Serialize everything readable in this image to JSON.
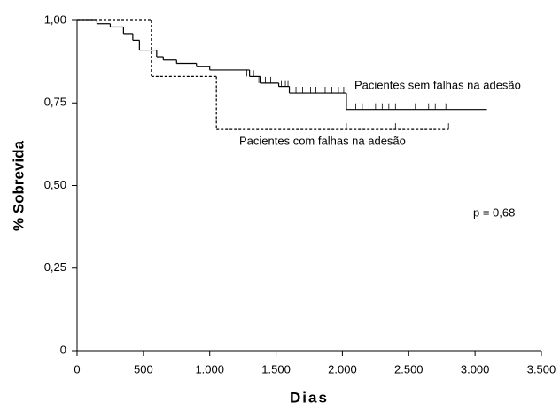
{
  "chart_data": {
    "type": "survival",
    "y_label": "% Sobrevida",
    "x_label": "Dias",
    "annotation": "p = 0,68",
    "xlim": [
      0,
      3500
    ],
    "ylim": [
      0,
      1
    ],
    "xticks": [
      0,
      500,
      {
        "value": 1000,
        "label": "1.000"
      },
      {
        "value": 1500,
        "label": "1.500"
      },
      {
        "value": 2000,
        "label": "2.000"
      },
      {
        "value": 2500,
        "label": "2.500"
      },
      {
        "value": 3000,
        "label": "3.000"
      },
      {
        "value": 3500,
        "label": "3.500"
      }
    ],
    "yticks": [
      0,
      {
        "value": 0.25,
        "label": "0,25"
      },
      {
        "value": 0.5,
        "label": "0,50"
      },
      {
        "value": 0.75,
        "label": "0,75"
      },
      {
        "value": 1,
        "label": "1,00"
      }
    ],
    "series": [
      {
        "name": "Pacientes sem falhas na adesão",
        "color": "#000000",
        "line_style": "solid",
        "x": [
          0,
          150,
          250,
          350,
          420,
          470,
          600,
          650,
          750,
          900,
          1000,
          1300,
          1380,
          1520,
          1600,
          2030,
          3090
        ],
        "values": [
          1,
          0.99,
          0.98,
          0.96,
          0.94,
          0.91,
          0.89,
          0.88,
          0.87,
          0.86,
          0.85,
          0.83,
          0.81,
          0.8,
          0.78,
          0.73,
          0.73
        ],
        "censored_x": [
          1280,
          1330,
          1370,
          1420,
          1460,
          1540,
          1570,
          1590,
          1650,
          1700,
          1760,
          1800,
          1870,
          1920,
          1970,
          2010,
          2100,
          2150,
          2200,
          2250,
          2300,
          2350,
          2400,
          2550,
          2650,
          2700,
          2780
        ],
        "censored_values": [
          0.83,
          0.83,
          0.81,
          0.81,
          0.81,
          0.8,
          0.8,
          0.8,
          0.78,
          0.78,
          0.78,
          0.78,
          0.78,
          0.78,
          0.78,
          0.78,
          0.73,
          0.73,
          0.73,
          0.73,
          0.73,
          0.73,
          0.73,
          0.73,
          0.73,
          0.73,
          0.73
        ]
      },
      {
        "name": "Pacientes com falhas na adesão",
        "color": "#000000",
        "line_style": "dotted",
        "x": [
          0,
          560,
          1050,
          2800
        ],
        "values": [
          1,
          0.83,
          0.67,
          0.67
        ],
        "censored_x": [
          2030,
          2400,
          2800
        ],
        "censored_values": [
          0.67,
          0.67,
          0.67
        ]
      }
    ]
  }
}
